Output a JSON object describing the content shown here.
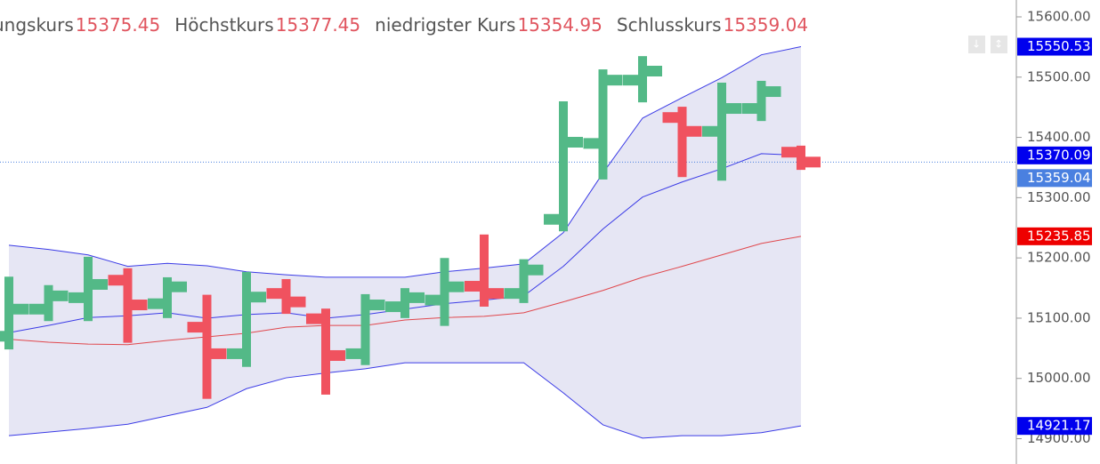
{
  "chart_data": {
    "type": "ohlc",
    "header": [
      {
        "label": "ungskurs",
        "value": 15375.45
      },
      {
        "label": "Höchstkurs",
        "value": 15377.45
      },
      {
        "label": "niedrigster Kurs",
        "value": 15354.95
      },
      {
        "label": "Schlusskurs",
        "value": 15359.04
      }
    ],
    "ohlc": {
      "open": [
        15070,
        15115,
        15134,
        15163,
        15124,
        15085,
        15041,
        15141,
        15099,
        15041,
        15119,
        15130,
        15153,
        15141,
        15264,
        15390,
        15495,
        15433,
        15410,
        15448,
        15375.45
      ],
      "high": [
        15160,
        15146,
        15193,
        15174,
        15159,
        15130,
        15168,
        15156,
        15107,
        15131,
        15141,
        15191,
        15230,
        15189,
        15451,
        15504,
        15526,
        15442,
        15482,
        15485,
        15377.45
      ],
      "low": [
        15057,
        15104,
        15104,
        15068,
        15109,
        14975,
        15028,
        15116,
        14982,
        15031,
        15109,
        15096,
        15128,
        15134,
        15253,
        15339,
        15467,
        15343,
        15337,
        15436,
        15354.95
      ],
      "close": [
        15115,
        15137,
        15156,
        15122,
        15152,
        15041,
        15135,
        15127,
        15038,
        15122,
        15134,
        15152,
        15141,
        15180,
        15392,
        15495,
        15510,
        15410,
        15448,
        15476,
        15359.04
      ]
    },
    "up_color": "#53b987",
    "down_color": "#f0525f",
    "bands": {
      "upper": [
        15221,
        15214,
        15205,
        15186,
        15191,
        15187,
        15177,
        15172,
        15168,
        15168,
        15168,
        15177,
        15183,
        15190,
        15242,
        15341,
        15432,
        15466,
        15499,
        15537,
        15550.53
      ],
      "inner": [
        15076,
        15088,
        15101,
        15104,
        15109,
        15100,
        15106,
        15109,
        15100,
        15106,
        15115,
        15124,
        15130,
        15137,
        15186,
        15248,
        15301,
        15326,
        15348,
        15373,
        15370.09
      ],
      "middle": [
        15065,
        15060,
        15057,
        15056,
        15063,
        15069,
        15075,
        15085,
        15088,
        15088,
        15097,
        15101,
        15103,
        15109,
        15127,
        15146,
        15168,
        15186,
        15205,
        15224,
        15235.85
      ],
      "lower": [
        14905,
        14911,
        14917,
        14924,
        14938,
        14952,
        14983,
        15001,
        15009,
        15016,
        15026,
        15026,
        15026,
        15026,
        14976,
        14923,
        14901,
        14905,
        14905,
        14910,
        14921.17
      ]
    },
    "band_color": "#3b3be6",
    "middle_color": "#e0474c",
    "fill_color": "#e6e6f4",
    "last_color": "#4a80e0",
    "ylim": [
      14858,
      15628
    ],
    "yticks": [
      {
        "value": 14900,
        "label": "14900.00"
      },
      {
        "value": 15000,
        "label": "15000.00"
      },
      {
        "value": 15100,
        "label": "15100.00"
      },
      {
        "value": 15200,
        "label": "15200.00"
      },
      {
        "value": 15300,
        "label": "15300.00"
      },
      {
        "value": 15400,
        "label": "15400.00"
      },
      {
        "value": 15500,
        "label": "15500.00"
      },
      {
        "value": 15600,
        "label": "15600.00"
      }
    ]
  }
}
